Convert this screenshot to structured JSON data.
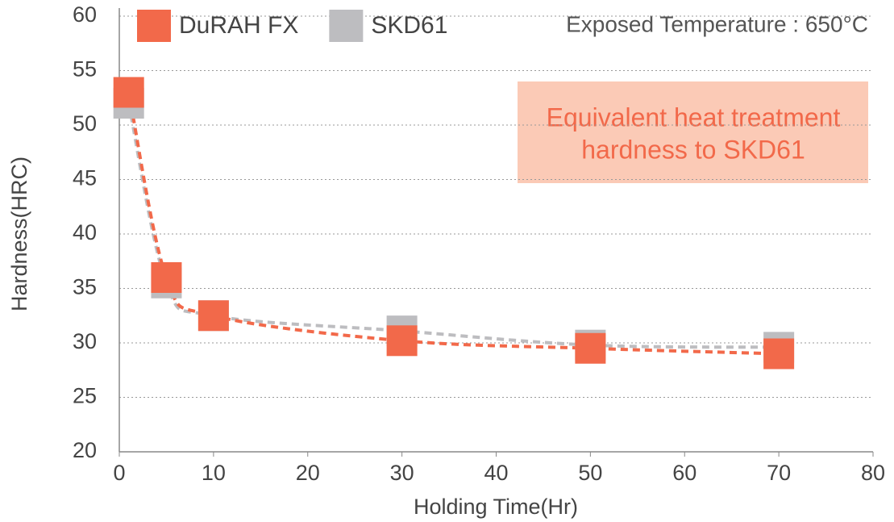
{
  "chart_data": {
    "type": "line",
    "x_label": "Holding Time(Hr)",
    "y_label": "Hardness(HRC)",
    "note": "Exposed Temperature : 650°C",
    "annotation": [
      "Equivalent heat treatment",
      "hardness to SKD61"
    ],
    "x": [
      1,
      5,
      10,
      30,
      50,
      70
    ],
    "series": [
      {
        "name": "SKD61",
        "color": "#bdbdc0",
        "values": [
          52,
          35.5,
          32.5,
          31.1,
          29.8,
          29.6
        ]
      },
      {
        "name": "DuRAH FX",
        "color": "#f2694a",
        "values": [
          53,
          36,
          32.5,
          30.2,
          29.5,
          29
        ]
      }
    ],
    "legend_order": [
      "DuRAH FX",
      "SKD61"
    ],
    "xlim": [
      0,
      80
    ],
    "xticks": [
      0,
      10,
      20,
      30,
      40,
      50,
      60,
      70,
      80
    ],
    "ylim": [
      20,
      60
    ],
    "yticks": [
      20,
      25,
      30,
      35,
      40,
      45,
      50,
      55,
      60
    ],
    "grid": true
  }
}
